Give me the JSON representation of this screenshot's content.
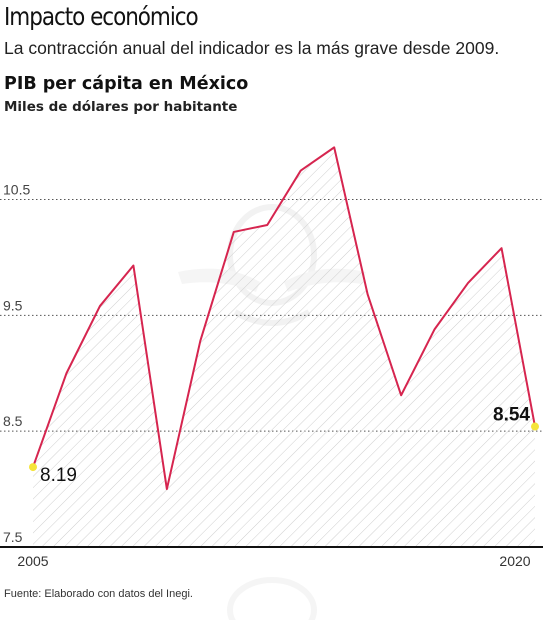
{
  "headline": "Impacto económico",
  "subheadline": "La contracción anual del indicador es la más grave desde 2009.",
  "chart_title": "PIB per cápita en México",
  "chart_unit": "Miles de dólares por habitante",
  "source": "Fuente: Elaborado con datos del Inegi.",
  "colors": {
    "line": "#d6254f",
    "marker": "#f5e43b",
    "grid": "#555555",
    "hatch": "#cfcfcf",
    "watermark": "#e8e8e8"
  },
  "chart_data": {
    "type": "area",
    "title": "PIB per cápita en México",
    "ylabel": "Miles de dólares por habitante",
    "x": [
      2005,
      2006,
      2007,
      2008,
      2009,
      2010,
      2011,
      2012,
      2013,
      2014,
      2015,
      2016,
      2017,
      2018,
      2019,
      2020
    ],
    "y": [
      8.19,
      9.0,
      9.58,
      9.93,
      8.0,
      9.28,
      10.22,
      10.28,
      10.75,
      10.95,
      9.68,
      8.81,
      9.38,
      9.78,
      10.08,
      8.54
    ],
    "ylim": [
      7.5,
      11.1
    ],
    "yticks": [
      7.5,
      8.5,
      9.5,
      10.5
    ],
    "ytick_labels": [
      "7.5",
      "8.5",
      "9.5",
      "10.5"
    ],
    "xtick_labels": [
      "2005",
      "2020"
    ],
    "grid": "horizontal dashed",
    "annotations": [
      {
        "label": "8.19",
        "point": "first"
      },
      {
        "label": "8.54",
        "point": "last"
      }
    ]
  }
}
